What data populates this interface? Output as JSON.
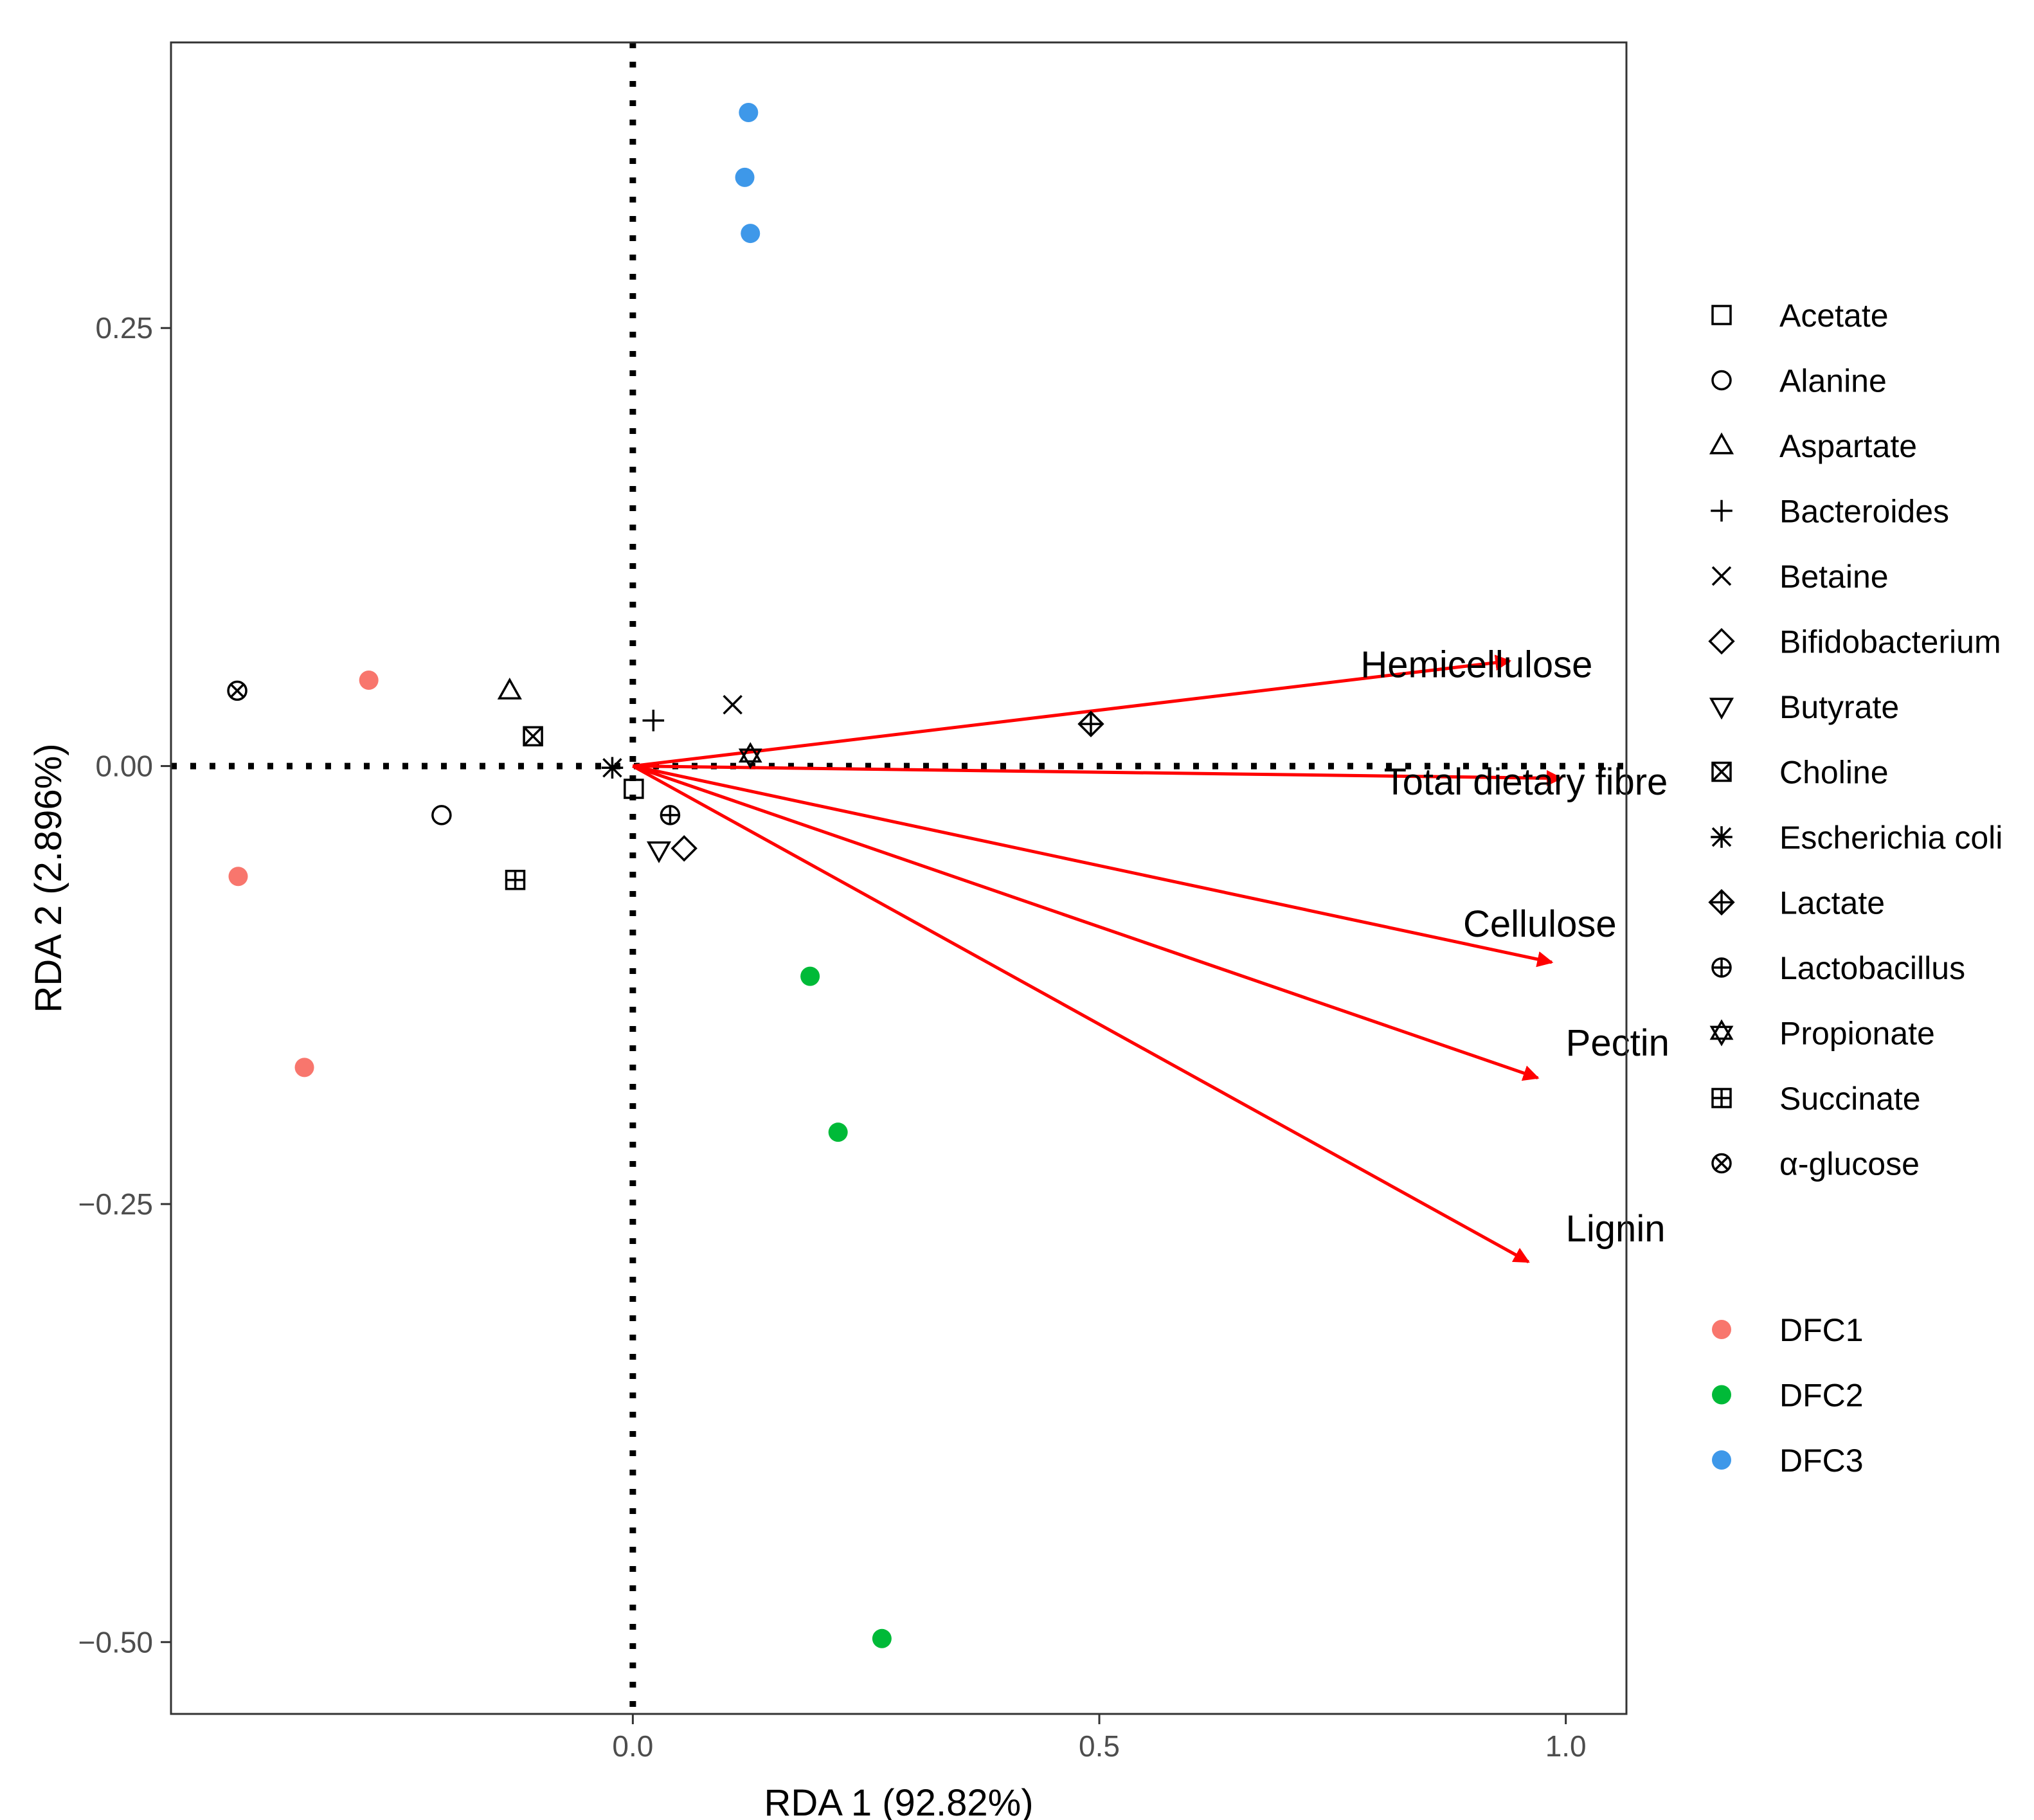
{
  "chart_data": {
    "type": "scatter",
    "title": "",
    "xlabel": "RDA 1 (92.82%)",
    "ylabel": "RDA 2 (2.896%)",
    "xlim": [
      -0.495,
      1.065
    ],
    "ylim": [
      -0.541,
      0.413
    ],
    "xticks": [
      {
        "value": 0.0,
        "label": "0.0"
      },
      {
        "value": 0.5,
        "label": "0.5"
      },
      {
        "value": 1.0,
        "label": "1.0"
      }
    ],
    "yticks": [
      {
        "value": 0.25,
        "label": "0.25"
      },
      {
        "value": 0.0,
        "label": "0.00"
      },
      {
        "value": -0.25,
        "label": "−0.25"
      },
      {
        "value": -0.5,
        "label": "−0.50"
      }
    ],
    "reference_lines": {
      "x": 0,
      "y": 0,
      "style": "dotted"
    },
    "arrow_color": "#ff0000",
    "arrows": [
      {
        "label": "Hemicellulose",
        "x": 0.94,
        "y": 0.06,
        "label_x": 0.78,
        "label_y": 0.058
      },
      {
        "label": "Total dietary fibre",
        "x": 0.995,
        "y": -0.007,
        "label_x": 0.805,
        "label_y": -0.009
      },
      {
        "label": "Cellulose",
        "x": 0.985,
        "y": -0.112,
        "label_x": 0.89,
        "label_y": -0.09
      },
      {
        "label": "Pectin",
        "x": 0.97,
        "y": -0.178,
        "label_x": 1.0,
        "label_y": -0.158
      },
      {
        "label": "Lignin",
        "x": 0.96,
        "y": -0.283,
        "label_x": 1.0,
        "label_y": -0.264
      }
    ],
    "arrow_origin": [
      0,
      0
    ],
    "variables": [
      {
        "name": "Acetate",
        "shape": "square",
        "x": 0.001,
        "y": -0.013
      },
      {
        "name": "Alanine",
        "shape": "circle",
        "x": -0.205,
        "y": -0.028
      },
      {
        "name": "Aspartate",
        "shape": "triangle-up",
        "x": -0.132,
        "y": 0.043
      },
      {
        "name": "Bacteroides",
        "shape": "plus",
        "x": 0.022,
        "y": 0.026
      },
      {
        "name": "Betaine",
        "shape": "cross",
        "x": 0.107,
        "y": 0.035
      },
      {
        "name": "Bifidobacterium",
        "shape": "diamond",
        "x": 0.055,
        "y": -0.047
      },
      {
        "name": "Butyrate",
        "shape": "triangle-down",
        "x": 0.028,
        "y": -0.048
      },
      {
        "name": "Choline",
        "shape": "square-cross",
        "x": -0.107,
        "y": 0.017
      },
      {
        "name": "Escherichia coli",
        "shape": "asterisk",
        "x": -0.022,
        "y": -0.001
      },
      {
        "name": "Lactate",
        "shape": "diamond-plus",
        "x": 0.491,
        "y": 0.024
      },
      {
        "name": "Lactobacillus",
        "shape": "circle-plus",
        "x": 0.04,
        "y": -0.028
      },
      {
        "name": "Propionate",
        "shape": "hexagram",
        "x": 0.126,
        "y": 0.006
      },
      {
        "name": "Succinate",
        "shape": "square-plus",
        "x": -0.126,
        "y": -0.065
      },
      {
        "name": "α-glucose",
        "shape": "circle-cross",
        "x": -0.424,
        "y": 0.043
      }
    ],
    "groups": [
      {
        "name": "DFC1",
        "color": "#f8766d",
        "points": [
          {
            "x": -0.283,
            "y": 0.049
          },
          {
            "x": -0.423,
            "y": -0.063
          },
          {
            "x": -0.352,
            "y": -0.172
          }
        ]
      },
      {
        "name": "DFC2",
        "color": "#00ba38",
        "points": [
          {
            "x": 0.19,
            "y": -0.12
          },
          {
            "x": 0.22,
            "y": -0.209
          },
          {
            "x": 0.267,
            "y": -0.498
          }
        ]
      },
      {
        "name": "DFC3",
        "color": "#3e98e9",
        "points": [
          {
            "x": 0.124,
            "y": 0.373
          },
          {
            "x": 0.12,
            "y": 0.336
          },
          {
            "x": 0.126,
            "y": 0.304
          }
        ]
      }
    ],
    "legend_position": "right"
  }
}
